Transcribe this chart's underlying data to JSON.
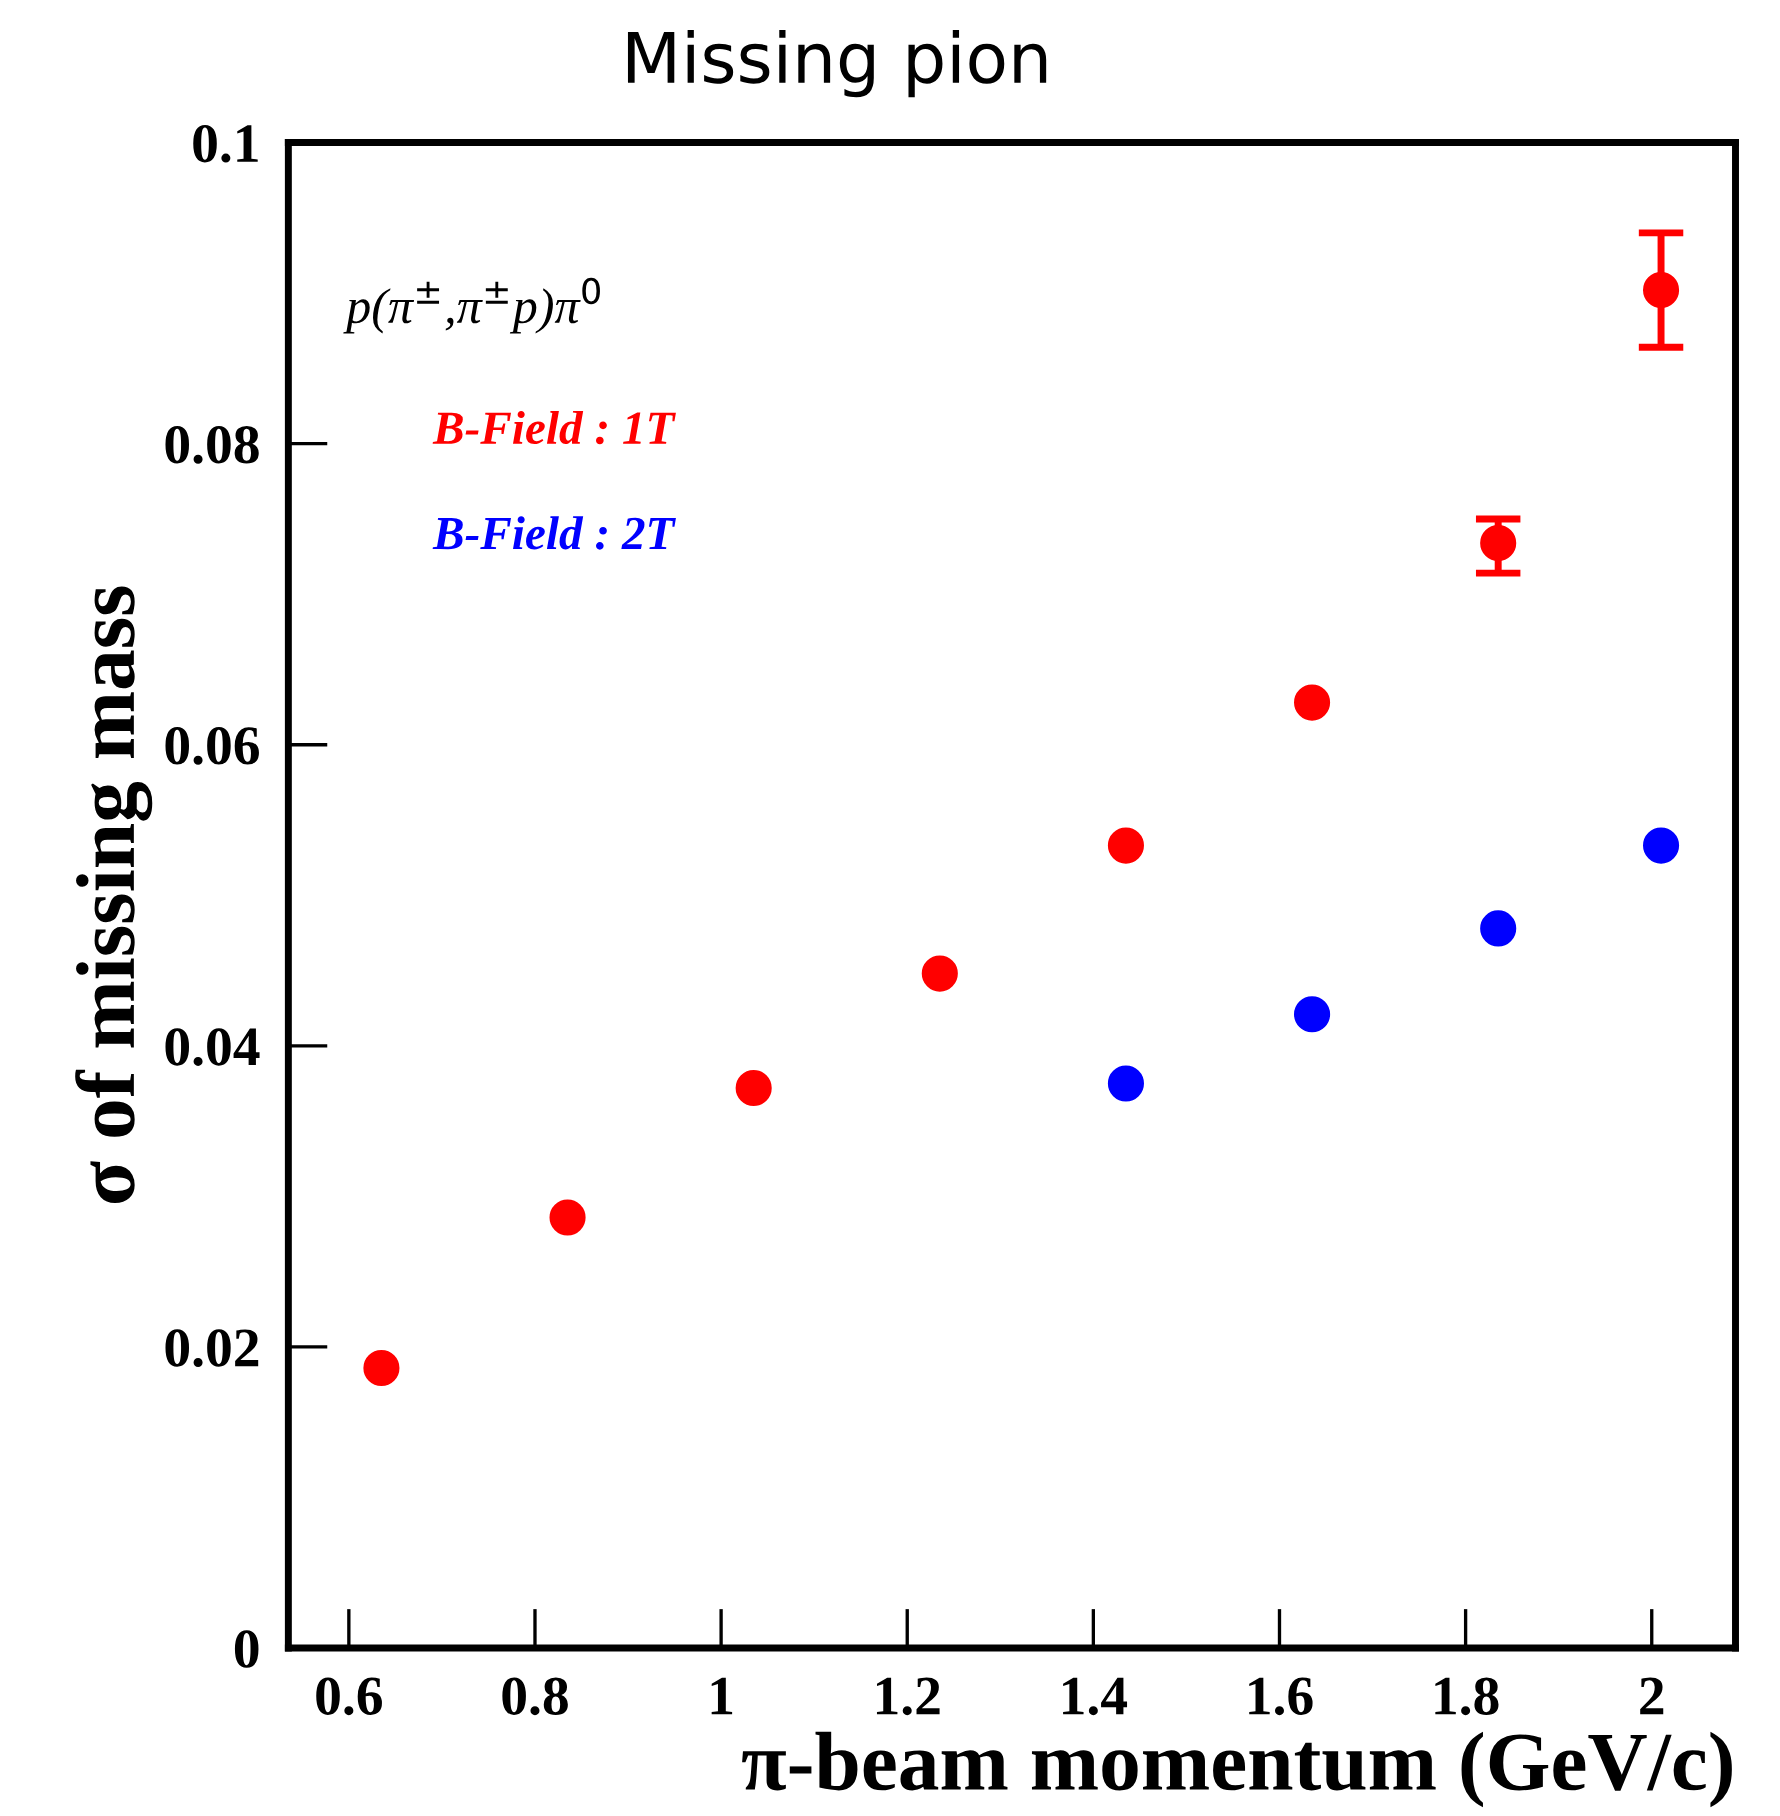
{
  "chart_data": {
    "type": "scatter",
    "title": "Missing pion",
    "xlabel": "π-beam momentum (GeV/c)",
    "ylabel": "σ of missing mass",
    "annotations": [
      "p(π$^{±}$,π$^{±}$p)π$^{0}$"
    ],
    "xlim": [
      0.535,
      2.09
    ],
    "xticks": [
      0.6,
      0.8,
      1,
      1.2,
      1.4,
      1.6,
      1.8,
      2
    ],
    "ylim": [
      0,
      0.1
    ],
    "yticks": [
      0,
      0.02,
      0.04,
      0.06,
      0.08,
      0.1
    ],
    "grid": false,
    "legend": false,
    "marker": "circle",
    "series": [
      {
        "name": "B-Field : 1T",
        "color": "#ff0000",
        "x": [
          0.635,
          0.835,
          1.035,
          1.235,
          1.435,
          1.635,
          1.835,
          2.01
        ],
        "values": [
          0.0186,
          0.0286,
          0.0372,
          0.0448,
          0.0533,
          0.0628,
          0.0734,
          0.0902
        ],
        "errors": [
          null,
          null,
          null,
          null,
          null,
          null,
          [
            0.0714,
            0.075
          ],
          [
            0.0864,
            0.094
          ]
        ]
      },
      {
        "name": "B-Field : 2T",
        "color": "#0000ff",
        "x": [
          1.435,
          1.635,
          1.835,
          2.01
        ],
        "values": [
          0.0375,
          0.0421,
          0.0478,
          0.0533
        ]
      }
    ]
  }
}
